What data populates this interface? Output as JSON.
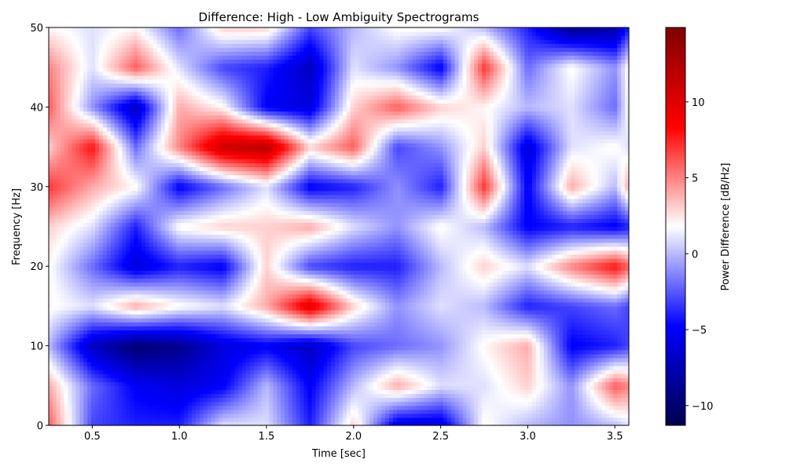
{
  "chart_data": {
    "type": "heatmap",
    "title": "Difference: High - Low Ambiguity Spectrograms",
    "xlabel": "Time [sec]",
    "ylabel": "Frequency [Hz]",
    "xlim": [
      0.25,
      3.58
    ],
    "ylim": [
      0,
      50
    ],
    "xticks": [
      0.5,
      1.0,
      1.5,
      2.0,
      2.5,
      3.0,
      3.5
    ],
    "xtick_labels": [
      "0.5",
      "1.0",
      "1.5",
      "2.0",
      "2.5",
      "3.0",
      "3.5"
    ],
    "yticks": [
      0,
      10,
      20,
      30,
      40,
      50
    ],
    "ytick_labels": [
      "0",
      "10",
      "20",
      "30",
      "40",
      "50"
    ],
    "colorbar": {
      "label": "Power Difference [dB/Hz]",
      "colormap": "seismic",
      "vmin": -11.3,
      "vmax": 14.9,
      "ticks": [
        -10,
        -5,
        0,
        5,
        10
      ],
      "tick_labels": [
        "−10",
        "−5",
        "0",
        "5",
        "10"
      ]
    },
    "t": [
      0.25,
      0.5,
      0.75,
      1.0,
      1.25,
      1.5,
      1.75,
      2.0,
      2.25,
      2.5,
      2.75,
      3.0,
      3.25,
      3.5,
      3.58
    ],
    "f": [
      0,
      5,
      10,
      15,
      20,
      25,
      30,
      35,
      40,
      45,
      50
    ],
    "z": [
      [
        6,
        -3,
        -4,
        -4,
        1,
        1,
        -4,
        3,
        -6,
        -6,
        2,
        0,
        -1,
        0,
        1
      ],
      [
        4,
        -2,
        -5,
        -6,
        -5,
        0,
        -5,
        0,
        4,
        1,
        1,
        3,
        -1,
        6,
        5
      ],
      [
        0,
        -7,
        -10,
        -9,
        -6,
        -5,
        -7,
        -3,
        -2,
        -1,
        2,
        4,
        -5,
        -4,
        -3
      ],
      [
        2,
        1,
        4,
        2,
        1,
        4,
        10,
        3,
        -1,
        1,
        0,
        -4,
        -3,
        -2,
        -3
      ],
      [
        2,
        -2,
        -6,
        -4,
        -5,
        3,
        -3,
        -4,
        -4,
        0,
        3,
        1,
        5,
        8,
        6
      ],
      [
        3,
        1,
        -4,
        2,
        3,
        3,
        4,
        1,
        -1,
        2,
        0,
        -5,
        -4,
        -5,
        -4
      ],
      [
        7,
        4,
        2,
        -5,
        -2,
        1,
        -5,
        -4,
        -1,
        -4,
        7,
        -5,
        4,
        0,
        4
      ],
      [
        3,
        8,
        -2,
        5,
        11,
        12,
        3,
        6,
        -3,
        -1,
        3,
        -6,
        1,
        2,
        1
      ],
      [
        6,
        -1,
        -7,
        4,
        2,
        -5,
        -6,
        3,
        6,
        3,
        2,
        0,
        1,
        -2,
        2
      ],
      [
        5,
        1,
        6,
        1,
        -3,
        -4,
        -7,
        1,
        -1,
        -5,
        7,
        -2,
        2,
        -1,
        2
      ],
      [
        2,
        1,
        2,
        -2,
        3,
        3,
        -3,
        0,
        2,
        2,
        0,
        -4,
        -9,
        -8,
        -4
      ]
    ]
  }
}
